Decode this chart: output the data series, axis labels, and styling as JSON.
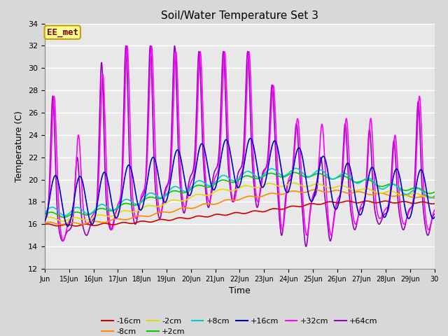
{
  "title": "Soil/Water Temperature Set 3",
  "xlabel": "Time",
  "ylabel": "Temperature (C)",
  "ylim": [
    12,
    34
  ],
  "fig_bg": "#d8d8d8",
  "plot_bg": "#e8e8e8",
  "annotation_text": "EE_met",
  "annotation_bg": "#ffff99",
  "annotation_border": "#c8a000",
  "annotation_text_color": "#800000",
  "xtick_labels": [
    "Jun",
    "15Jun",
    "16Jun",
    "17Jun",
    "18Jun",
    "19Jun",
    "20Jun",
    "21Jun",
    "22Jun",
    "23Jun",
    "24Jun",
    "25Jun",
    "26Jun",
    "27Jun",
    "28Jun",
    "29Jun",
    "30"
  ],
  "xtick_positions": [
    0,
    1,
    2,
    3,
    4,
    5,
    6,
    7,
    8,
    9,
    10,
    11,
    12,
    13,
    14,
    15,
    16
  ],
  "ytick_labels": [
    "12",
    "14",
    "16",
    "18",
    "20",
    "22",
    "24",
    "26",
    "28",
    "30",
    "32",
    "34"
  ],
  "ytick_positions": [
    12,
    14,
    16,
    18,
    20,
    22,
    24,
    26,
    28,
    30,
    32,
    34
  ],
  "colors": {
    "-16cm": "#cc0000",
    "-8cm": "#ff8800",
    "-2cm": "#dddd00",
    "+2cm": "#00cc00",
    "+8cm": "#00cccc",
    "+16cm": "#0000cc",
    "+32cm": "#ff00ff",
    "+64cm": "#9900bb"
  }
}
